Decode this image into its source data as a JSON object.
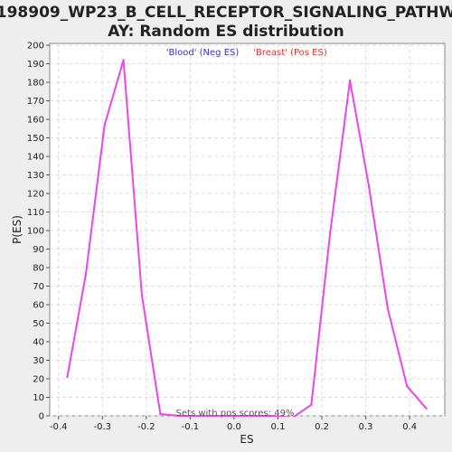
{
  "chart_data": {
    "type": "line",
    "title_line1": "198909_WP23_B_CELL_RECEPTOR_SIGNALING_PATHW",
    "title_line2": "AY: Random ES distribution",
    "legend_neg": "'Blood' (Neg ES)",
    "legend_pos": "'Breast' (Pos ES)",
    "xlabel": "ES",
    "ylabel": "P(ES)",
    "annotation": "Sets with pos scores: 49%",
    "xlim": [
      -0.42,
      0.48
    ],
    "ylim": [
      0,
      201
    ],
    "xticks": [
      -0.4,
      -0.3,
      -0.2,
      -0.1,
      0.0,
      0.1,
      0.2,
      0.3,
      0.4
    ],
    "xtick_labels": [
      "-0.4",
      "-0.3",
      "-0.2",
      "-0.1",
      "0.0",
      "0.1",
      "0.2",
      "0.3",
      "0.4"
    ],
    "yticks": [
      0,
      10,
      20,
      30,
      40,
      50,
      60,
      70,
      80,
      90,
      100,
      110,
      120,
      130,
      140,
      150,
      160,
      170,
      180,
      190,
      200
    ],
    "grid": true,
    "series": [
      {
        "color": "#ee44ee",
        "x": [
          -0.38,
          -0.338,
          -0.295,
          -0.252,
          -0.21,
          -0.168,
          -0.125,
          -0.082,
          -0.04,
          0.003,
          0.046,
          0.09,
          0.133,
          0.176,
          0.219,
          0.264,
          0.307,
          0.35,
          0.394,
          0.438
        ],
        "y": [
          21,
          76,
          157,
          192,
          65,
          1,
          0,
          0,
          0,
          0,
          0,
          0,
          -1,
          6,
          99,
          181,
          124,
          58,
          16,
          4
        ]
      }
    ],
    "colors": {
      "background": "#eeeeee",
      "plot_bg": "#ffffff",
      "grid": "#dddddd",
      "legend_neg": "#3333cc",
      "legend_pos": "#dd3333",
      "line": "#ee44ee"
    }
  }
}
